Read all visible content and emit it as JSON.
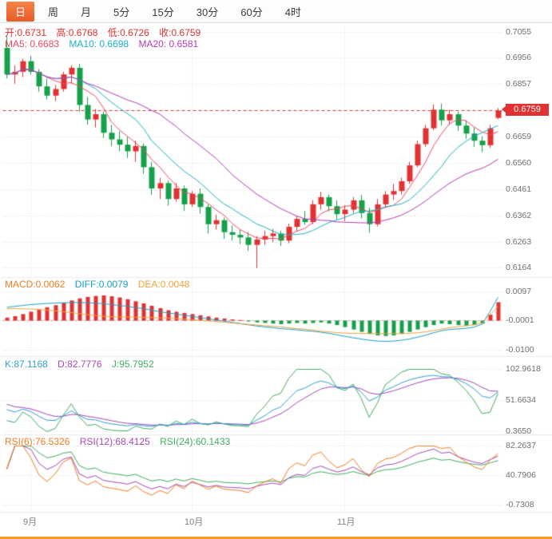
{
  "toolbar": {
    "tabs": [
      {
        "label": "日",
        "active": true
      },
      {
        "label": "周",
        "active": false
      },
      {
        "label": "月",
        "active": false
      },
      {
        "label": "5分",
        "active": false
      },
      {
        "label": "15分",
        "active": false
      },
      {
        "label": "30分",
        "active": false
      },
      {
        "label": "60分",
        "active": false
      },
      {
        "label": "4时",
        "active": false
      }
    ]
  },
  "main": {
    "ohlc": [
      "开:0.6731",
      "高:0.6768",
      "低:0.6726",
      "收:0.6759"
    ],
    "ma": [
      "MA5: 0.6683",
      "MA10: 0.6698",
      "MA20: 0.6581"
    ]
  },
  "macd_panel": {
    "labels": [
      "MACD:0.0062",
      "DIFF:0.0079",
      "DEA:0.0048"
    ]
  },
  "kdj_panel": {
    "labels": [
      "K:87.1168",
      "D:82.7776",
      "J:95.7952"
    ]
  },
  "rsi_panel": {
    "labels": [
      "RSI(6):76.5326",
      "RSI(12):68.4125",
      "RSI(24):60.1433"
    ]
  },
  "axes": {
    "price": [
      "0.7055",
      "0.6956",
      "0.6857",
      "0.6659",
      "0.6560",
      "0.6461",
      "0.6362",
      "0.6263",
      "0.6164"
    ],
    "price_tag": "0.6759",
    "macd": [
      "0.0097",
      "-0.0001",
      "-0.0100"
    ],
    "kdj": [
      "102.9618",
      "51.6634",
      "0.3650"
    ],
    "rsi": [
      "82.2637",
      "40.7906",
      "-0.7308"
    ],
    "months": [
      "9月",
      "10月",
      "11月"
    ]
  },
  "colors": {
    "up": "#e03232",
    "down": "#15a14a",
    "ma5": "#ef4863",
    "ma10": "#18b2c8",
    "ma20": "#b43bb4",
    "diff": "#18a0c8",
    "dea": "#f2a33c",
    "k": "#2e9fd0",
    "d": "#a348b8",
    "j": "#3faf5f",
    "rsi6": "#ef7d21",
    "rsi12": "#a348b8",
    "rsi24": "#3faf5f",
    "tag_bg": "#e03232",
    "accent_bar": "#f59a23",
    "active_tab": "#ee6f3a",
    "grid": "#dedede",
    "separator": "#ececec",
    "axis_text": "#6f6f6f"
  },
  "chart_data": {
    "type": "candlestick",
    "title": "Daily candlestick chart with MACD, KDJ and RSI panels",
    "current_price": 0.6759,
    "price_gridlines": [
      0.7055,
      0.6956,
      0.6857,
      0.6759,
      0.6659,
      0.656,
      0.6461,
      0.6362,
      0.6263,
      0.6164
    ],
    "x_months": [
      "9月",
      "10月",
      "11月"
    ],
    "month_label_indices": [
      3,
      23,
      42
    ],
    "indicator_params": {
      "ma": [
        5,
        10,
        20
      ],
      "kdj": [
        9,
        3,
        3
      ],
      "rsi": [
        6,
        12,
        24
      ],
      "macd": [
        12,
        26,
        9
      ]
    },
    "panel_ranges": {
      "main": [
        0.6147,
        0.7072
      ],
      "macd": [
        -0.0105,
        0.0105
      ],
      "kdj": [
        0.365,
        102.9618
      ],
      "rsi": [
        -0.7308,
        82.2637
      ]
    },
    "candles": [
      [
        0.6995,
        0.704,
        0.688,
        0.6895
      ],
      [
        0.6895,
        0.693,
        0.686,
        0.6905
      ],
      [
        0.6905,
        0.6955,
        0.6885,
        0.6945
      ],
      [
        0.6945,
        0.6965,
        0.6895,
        0.6905
      ],
      [
        0.6905,
        0.6915,
        0.683,
        0.685
      ],
      [
        0.685,
        0.688,
        0.68,
        0.6815
      ],
      [
        0.6815,
        0.6855,
        0.6795,
        0.684
      ],
      [
        0.684,
        0.6905,
        0.683,
        0.6895
      ],
      [
        0.6895,
        0.693,
        0.686,
        0.692
      ],
      [
        0.692,
        0.6935,
        0.6755,
        0.678
      ],
      [
        0.678,
        0.681,
        0.6705,
        0.6725
      ],
      [
        0.6725,
        0.6765,
        0.6695,
        0.6745
      ],
      [
        0.6745,
        0.6755,
        0.6655,
        0.6675
      ],
      [
        0.6675,
        0.6705,
        0.6625,
        0.665
      ],
      [
        0.665,
        0.668,
        0.6605,
        0.663
      ],
      [
        0.663,
        0.666,
        0.658,
        0.6605
      ],
      [
        0.6605,
        0.6645,
        0.6565,
        0.6625
      ],
      [
        0.6625,
        0.6635,
        0.652,
        0.6545
      ],
      [
        0.6545,
        0.6565,
        0.644,
        0.6465
      ],
      [
        0.6465,
        0.6505,
        0.6425,
        0.6485
      ],
      [
        0.6485,
        0.6495,
        0.64,
        0.6425
      ],
      [
        0.6425,
        0.6485,
        0.6415,
        0.6465
      ],
      [
        0.6465,
        0.6475,
        0.638,
        0.6405
      ],
      [
        0.6405,
        0.6455,
        0.6395,
        0.6445
      ],
      [
        0.6445,
        0.6465,
        0.637,
        0.6395
      ],
      [
        0.6395,
        0.6405,
        0.6295,
        0.633
      ],
      [
        0.633,
        0.6365,
        0.631,
        0.6345
      ],
      [
        0.6345,
        0.6355,
        0.6275,
        0.63
      ],
      [
        0.63,
        0.6325,
        0.6268,
        0.629
      ],
      [
        0.629,
        0.631,
        0.6255,
        0.628
      ],
      [
        0.628,
        0.63,
        0.623,
        0.6252
      ],
      [
        0.6252,
        0.6285,
        0.6164,
        0.6272
      ],
      [
        0.6272,
        0.6305,
        0.6252,
        0.6285
      ],
      [
        0.6285,
        0.6312,
        0.6262,
        0.6295
      ],
      [
        0.6295,
        0.6305,
        0.6248,
        0.6268
      ],
      [
        0.6268,
        0.6332,
        0.6258,
        0.632
      ],
      [
        0.632,
        0.6362,
        0.6302,
        0.635
      ],
      [
        0.635,
        0.638,
        0.6328,
        0.6338
      ],
      [
        0.6338,
        0.642,
        0.633,
        0.6405
      ],
      [
        0.6405,
        0.6452,
        0.6385,
        0.6432
      ],
      [
        0.6432,
        0.6442,
        0.6378,
        0.6398
      ],
      [
        0.6398,
        0.642,
        0.6348,
        0.6368
      ],
      [
        0.6368,
        0.6402,
        0.6342,
        0.6385
      ],
      [
        0.6385,
        0.6432,
        0.6372,
        0.642
      ],
      [
        0.642,
        0.644,
        0.6352,
        0.6372
      ],
      [
        0.6372,
        0.6392,
        0.6298,
        0.633
      ],
      [
        0.633,
        0.6425,
        0.6322,
        0.6405
      ],
      [
        0.6405,
        0.6455,
        0.6392,
        0.6442
      ],
      [
        0.6442,
        0.6482,
        0.6422,
        0.6455
      ],
      [
        0.6455,
        0.6505,
        0.6442,
        0.6492
      ],
      [
        0.6492,
        0.6565,
        0.6482,
        0.6552
      ],
      [
        0.6552,
        0.6645,
        0.6545,
        0.6632
      ],
      [
        0.6632,
        0.6705,
        0.6622,
        0.6692
      ],
      [
        0.6692,
        0.6782,
        0.6685,
        0.6762
      ],
      [
        0.6762,
        0.6785,
        0.6702,
        0.6722
      ],
      [
        0.6722,
        0.6762,
        0.6705,
        0.6745
      ],
      [
        0.6745,
        0.6755,
        0.6682,
        0.6702
      ],
      [
        0.6702,
        0.6722,
        0.6652,
        0.6672
      ],
      [
        0.6672,
        0.6695,
        0.6622,
        0.6645
      ],
      [
        0.6645,
        0.6662,
        0.6602,
        0.6628
      ],
      [
        0.6628,
        0.6705,
        0.6618,
        0.6692
      ],
      [
        0.6731,
        0.6768,
        0.6726,
        0.6759
      ]
    ],
    "macd": {
      "diff": [
        0.0045,
        0.0048,
        0.0051,
        0.0054,
        0.0056,
        0.0058,
        0.0059,
        0.006,
        0.0061,
        0.0061,
        0.006,
        0.0059,
        0.0057,
        0.0054,
        0.0051,
        0.0048,
        0.0044,
        0.004,
        0.0035,
        0.003,
        0.0026,
        0.0022,
        0.0018,
        0.0014,
        0.001,
        0.0006,
        0.0002,
        -0.0002,
        -0.0006,
        -0.001,
        -0.0014,
        -0.0018,
        -0.0021,
        -0.0024,
        -0.0027,
        -0.0029,
        -0.0031,
        -0.0034,
        -0.0036,
        -0.0039,
        -0.0043,
        -0.0048,
        -0.0053,
        -0.0058,
        -0.0062,
        -0.0066,
        -0.0069,
        -0.007,
        -0.0069,
        -0.0066,
        -0.0062,
        -0.0056,
        -0.0049,
        -0.0041,
        -0.0034,
        -0.003,
        -0.0028,
        -0.0026,
        -0.0022,
        -0.0012,
        0.003,
        0.0079
      ],
      "hist": [
        0.001,
        0.0015,
        0.0022,
        0.003,
        0.0038,
        0.0045,
        0.0052,
        0.006,
        0.0068,
        0.0075,
        0.008,
        0.0083,
        0.0085,
        0.0082,
        0.0078,
        0.0072,
        0.0065,
        0.0058,
        0.005,
        0.0042,
        0.0035,
        0.003,
        0.0026,
        0.0022,
        0.0018,
        0.0014,
        0.001,
        0.0007,
        0.0004,
        0.0002,
        -0.0003,
        -0.0006,
        -0.0008,
        -0.001,
        -0.0012,
        -0.001,
        -0.0008,
        -0.001,
        -0.0008,
        -0.0006,
        -0.001,
        -0.0015,
        -0.0022,
        -0.003,
        -0.0038,
        -0.0045,
        -0.005,
        -0.0052,
        -0.005,
        -0.0045,
        -0.0038,
        -0.003,
        -0.0022,
        -0.0015,
        -0.001,
        -0.0012,
        -0.0015,
        -0.0018,
        -0.0015,
        -0.001,
        0.002,
        0.0062
      ]
    }
  }
}
